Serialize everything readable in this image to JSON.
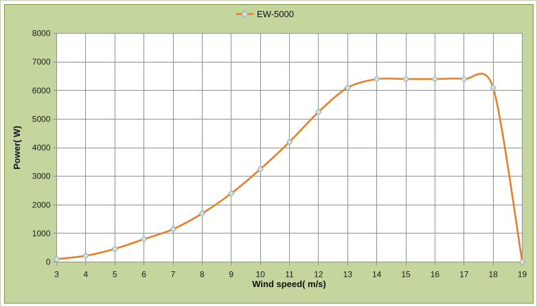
{
  "chart_data": {
    "type": "line",
    "smooth": true,
    "marker": "diamond",
    "xlabel": "Wind speed( m/s)",
    "ylabel": "Power( W)",
    "xlim": [
      3,
      19
    ],
    "ylim": [
      0,
      8000
    ],
    "grid": true,
    "legend_position": "top-center",
    "categories": [
      3,
      4,
      5,
      6,
      7,
      8,
      9,
      10,
      11,
      12,
      13,
      14,
      15,
      16,
      17,
      18,
      19
    ],
    "y_ticks": [
      0,
      1000,
      2000,
      3000,
      4000,
      5000,
      6000,
      7000,
      8000
    ],
    "series": [
      {
        "name": "EW-5000",
        "x": [
          3,
          4,
          5,
          6,
          7,
          8,
          9,
          10,
          11,
          12,
          13,
          14,
          15,
          16,
          17,
          18,
          19
        ],
        "values": [
          100,
          220,
          460,
          800,
          1150,
          1700,
          2400,
          3250,
          4200,
          5250,
          6100,
          6400,
          6400,
          6400,
          6400,
          6100,
          0
        ]
      }
    ]
  },
  "colors": {
    "chart_background": "#C4D59D",
    "chart_border": "#7E9444",
    "plot_background": "#FFFFFF",
    "gridline": "#8F8F8F",
    "plot_border": "#8F8F8F",
    "series_line": "#E87E23",
    "marker_fill": "#DCE5C8",
    "marker_stroke": "#8FB2D4",
    "text": "#1A1A1A"
  }
}
